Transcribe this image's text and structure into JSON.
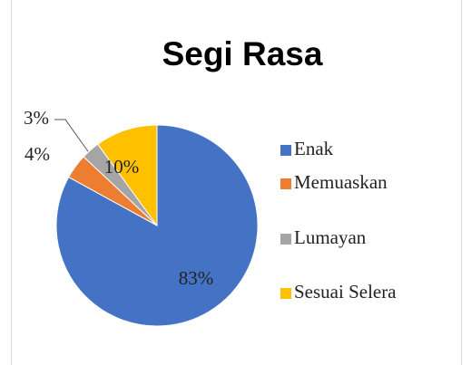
{
  "chart_data": {
    "type": "pie",
    "title": "Segi Rasa",
    "categories": [
      "Enak",
      "Memuaskan",
      "Lumayan",
      "Sesuai Selera"
    ],
    "values": [
      83,
      4,
      3,
      10
    ],
    "value_labels": [
      "83%",
      "4%",
      "3%",
      "10%"
    ],
    "colors": [
      "#4472c4",
      "#ed7d31",
      "#a5a5a5",
      "#ffc000"
    ],
    "legend": "right"
  }
}
